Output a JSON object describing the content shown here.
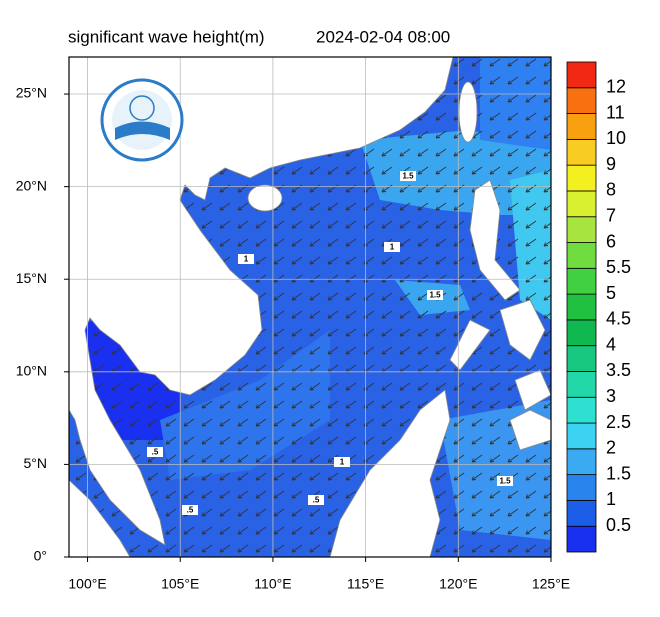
{
  "title": "significant wave height(m)",
  "time": "2024-02-04 08:00",
  "map": {
    "xlim": [
      99,
      125
    ],
    "ylim": [
      0,
      27
    ],
    "xticks": [
      {
        "value": 100,
        "label": "100°E"
      },
      {
        "value": 105,
        "label": "105°E"
      },
      {
        "value": 110,
        "label": "110°E"
      },
      {
        "value": 115,
        "label": "115°E"
      },
      {
        "value": 120,
        "label": "120°E"
      },
      {
        "value": 125,
        "label": "125°E"
      }
    ],
    "yticks": [
      {
        "value": 0,
        "label": "0°"
      },
      {
        "value": 5,
        "label": "5°N"
      },
      {
        "value": 10,
        "label": "10°N"
      },
      {
        "value": 15,
        "label": "15°N"
      },
      {
        "value": 20,
        "label": "20°N"
      },
      {
        "value": 25,
        "label": "25°N"
      }
    ],
    "grid": true,
    "contour_labels": [
      1.5,
      1.5,
      1.5,
      1,
      1,
      1,
      {
        "value": 0.5,
        "label": ".5"
      },
      {
        "value": 0.5,
        "label": ".5"
      },
      {
        "value": 0.5,
        "label": ".5"
      }
    ]
  },
  "colorbar": {
    "levels": [
      0.5,
      1,
      1.5,
      2,
      2.5,
      3,
      3.5,
      4,
      4.5,
      5,
      5.5,
      6,
      7,
      8,
      9,
      10,
      11,
      12
    ],
    "colors": [
      "#1a30f0",
      "#1d5ee8",
      "#2a84ee",
      "#3aaaf2",
      "#3cd2f2",
      "#2ee0d0",
      "#22d8a8",
      "#18c880",
      "#10b850",
      "#20c040",
      "#40d040",
      "#70dc40",
      "#a8e440",
      "#d8f030",
      "#f4f020",
      "#f8cc20",
      "#f8a010",
      "#f87010",
      "#f02814"
    ]
  }
}
